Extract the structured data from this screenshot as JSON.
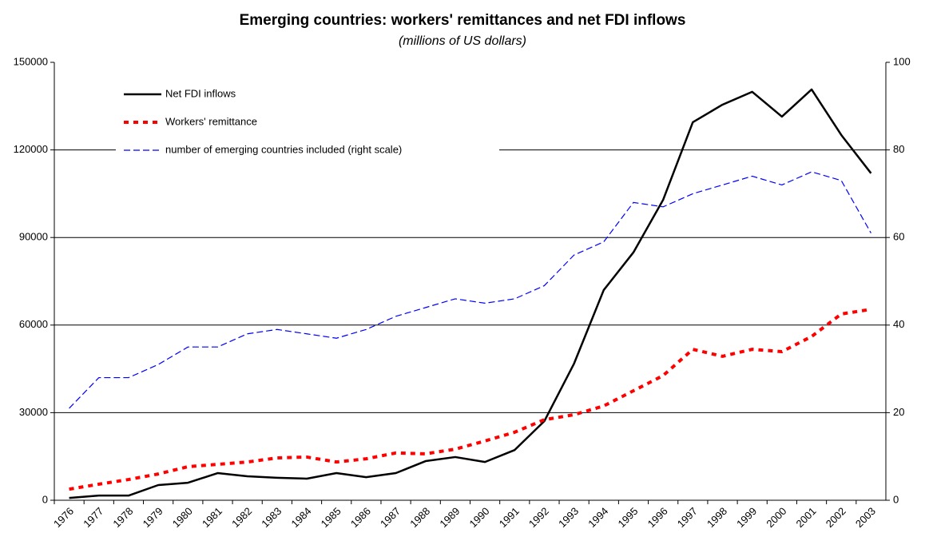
{
  "chart_data": {
    "type": "line",
    "title": "Emerging countries: workers' remittances and net FDI inflows",
    "subtitle": "(millions of US dollars)",
    "categories": [
      "1976",
      "1977",
      "1978",
      "1979",
      "1980",
      "1981",
      "1982",
      "1983",
      "1984",
      "1985",
      "1986",
      "1987",
      "1988",
      "1989",
      "1990",
      "1991",
      "1992",
      "1993",
      "1994",
      "1995",
      "1996",
      "1997",
      "1998",
      "1999",
      "2000",
      "2001",
      "2002",
      "2003"
    ],
    "series": [
      {
        "name": "Net FDI inflows",
        "color": "#000000",
        "dash": "solid",
        "values": [
          800,
          1600,
          1600,
          5200,
          6000,
          9300,
          8200,
          7700,
          7400,
          9300,
          7900,
          9300,
          13400,
          14800,
          13100,
          17200,
          27100,
          46800,
          72000,
          84900,
          102900,
          129500,
          135500,
          139900,
          131400,
          140700,
          125100,
          112000
        ]
      },
      {
        "name": "Workers' remittance",
        "color": "#ff0000",
        "dash": "dotted",
        "values": [
          3800,
          5500,
          7100,
          9000,
          11500,
          12300,
          13100,
          14500,
          14800,
          13100,
          14200,
          16200,
          15900,
          17500,
          20300,
          23300,
          27600,
          29300,
          32300,
          37500,
          42700,
          51700,
          49300,
          51700,
          50900,
          56100,
          63800,
          65400
        ]
      },
      {
        "name": "number of emerging countries included (right scale)",
        "color": "#0000ff",
        "dash": "dashed",
        "axis": "y2",
        "values": [
          21,
          28,
          28,
          31,
          35,
          35,
          38,
          39,
          38,
          37,
          39,
          42,
          44,
          46,
          45,
          46,
          49,
          56,
          59,
          68,
          67,
          70,
          72,
          74,
          72,
          75,
          73,
          61
        ]
      }
    ],
    "ylim": [
      0,
      150000
    ],
    "yticks": [
      0,
      30000,
      60000,
      90000,
      120000,
      150000
    ],
    "y2lim": [
      0,
      100
    ],
    "y2ticks": [
      0,
      20,
      40,
      60,
      80,
      100
    ],
    "grid": true,
    "legend": "upper left"
  }
}
